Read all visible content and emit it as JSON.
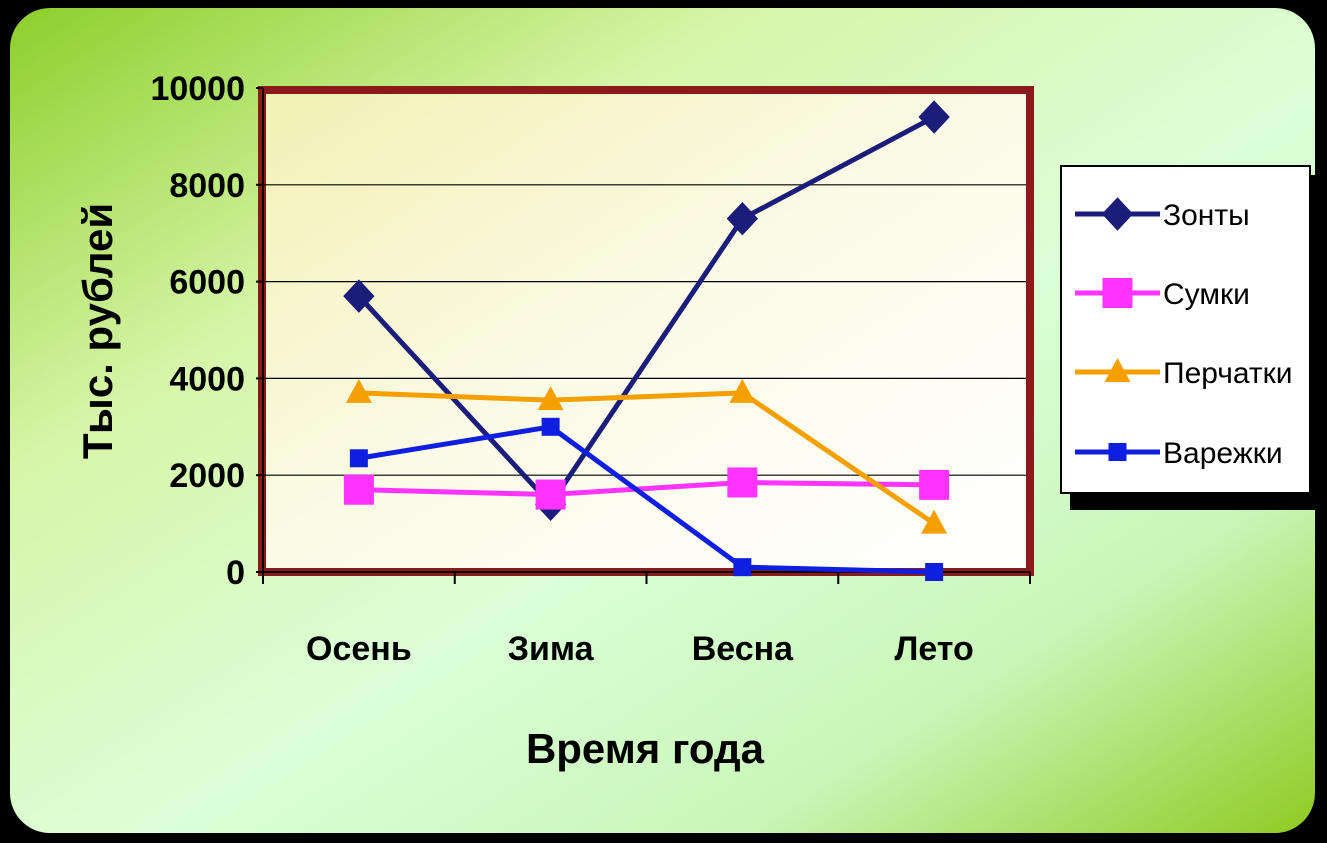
{
  "chart_data": {
    "type": "line",
    "categories": [
      "Осень",
      "Зима",
      "Весна",
      "Лето"
    ],
    "series": [
      {
        "name": "Зонты",
        "values": [
          5700,
          1400,
          7300,
          9400
        ],
        "color": "#1c1c7a",
        "marker": "diamond"
      },
      {
        "name": "Сумки",
        "values": [
          1700,
          1600,
          1850,
          1800
        ],
        "color": "#ff33ff",
        "marker": "square"
      },
      {
        "name": "Перчатки",
        "values": [
          3700,
          3550,
          3700,
          1000
        ],
        "color": "#f5a000",
        "marker": "triangle"
      },
      {
        "name": "Варежки",
        "values": [
          2350,
          3000,
          100,
          0
        ],
        "color": "#0f1fe0",
        "marker": "small-square"
      }
    ],
    "yticks": [
      "0",
      "2000",
      "4000",
      "6000",
      "8000",
      "10000"
    ],
    "ylim": [
      0,
      10000
    ],
    "xlabel": "Время года",
    "ylabel": "Тыс. рублей",
    "grid": true,
    "legend": "right"
  }
}
